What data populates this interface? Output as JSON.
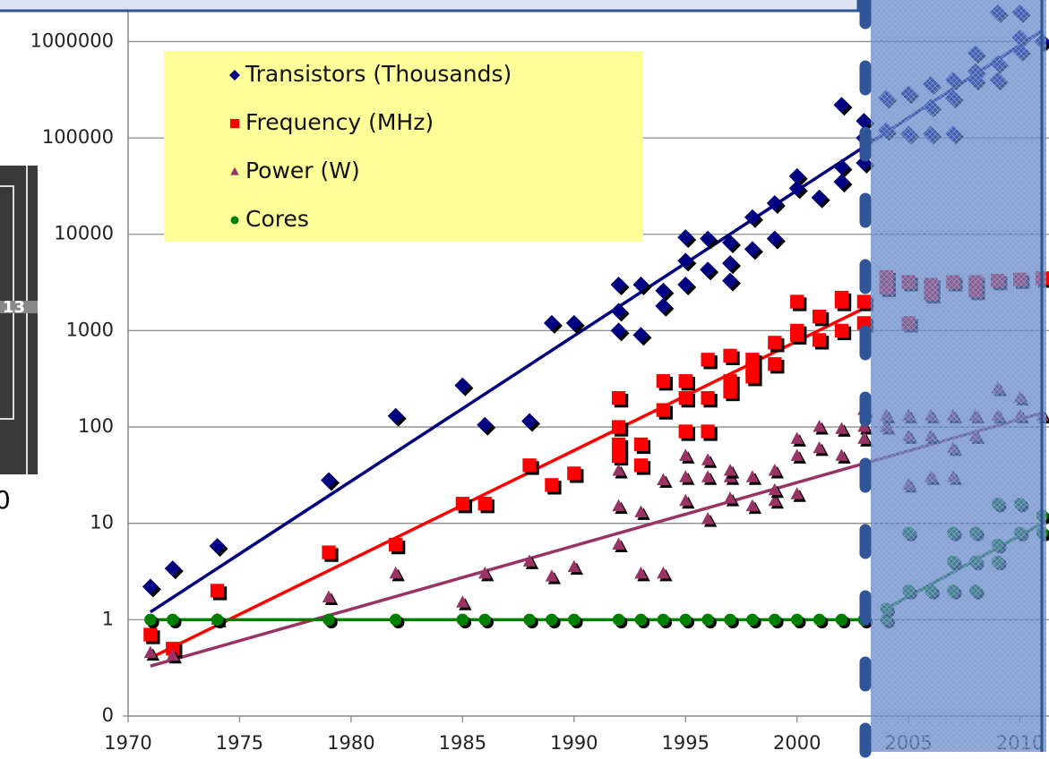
{
  "chart_data": {
    "type": "scatter",
    "log_y": true,
    "grid": true,
    "legend": "upper left",
    "xlim": [
      1970,
      2011.3
    ],
    "ylim": [
      0.1,
      2700000
    ],
    "xticks": [
      1970,
      1975,
      1980,
      1985,
      1990,
      1995,
      2000,
      2005,
      2010
    ],
    "yticks": [
      {
        "value": 0.1,
        "label": "0"
      },
      1,
      10,
      100,
      1000,
      10000,
      100000,
      1000000
    ],
    "annotations": [
      "13",
      "0"
    ],
    "series": [
      {
        "name": "Transistors (Thousands)",
        "color": "#000080",
        "marker": "diamond",
        "x": [
          1971,
          1972,
          1974,
          1979,
          1982,
          1985,
          1986,
          1988,
          1989,
          1990,
          1992,
          1992,
          1992,
          1993,
          1993,
          1994,
          1994,
          1995,
          1995,
          1995,
          1996,
          1996,
          1997,
          1997,
          1997,
          1998,
          1998,
          1999,
          1999,
          2000,
          2000,
          2001,
          2002,
          2002,
          2002,
          2003,
          2003,
          2003,
          2004,
          2004,
          2005,
          2005,
          2006,
          2006,
          2006,
          2007,
          2007,
          2007,
          2008,
          2008,
          2008,
          2009,
          2009,
          2009,
          2010,
          2010,
          2010,
          2011
        ],
        "values": [
          2.2,
          3.4,
          5.8,
          28,
          130,
          270,
          105,
          115,
          1200,
          1200,
          3000,
          1600,
          1000,
          3000,
          900,
          2600,
          1800,
          9300,
          5300,
          3000,
          9000,
          4300,
          8200,
          5000,
          3300,
          15000,
          7000,
          21000,
          9000,
          40000,
          30000,
          24000,
          220000,
          50000,
          35000,
          150000,
          100000,
          55000,
          260000,
          120000,
          290000,
          110000,
          360000,
          210000,
          110000,
          400000,
          260000,
          110000,
          760000,
          490000,
          400000,
          2000000,
          600000,
          400000,
          2000000,
          1100000,
          800000,
          1000000
        ],
        "trends": [
          {
            "x": [
              1971,
              2011
            ],
            "values": [
              1.2,
              1300000
            ]
          }
        ]
      },
      {
        "name": "Frequency (MHz)",
        "color": "#ff0000",
        "marker": "square",
        "x": [
          1971,
          1972,
          1974,
          1979,
          1982,
          1985,
          1986,
          1988,
          1989,
          1990,
          1992,
          1992,
          1992,
          1992,
          1993,
          1993,
          1994,
          1994,
          1995,
          1995,
          1995,
          1996,
          1996,
          1996,
          1997,
          1997,
          1997,
          1998,
          1998,
          1998,
          1999,
          1999,
          2000,
          2000,
          2000,
          2001,
          2001,
          2002,
          2002,
          2002,
          2003,
          2003,
          2004,
          2004,
          2005,
          2005,
          2006,
          2006,
          2007,
          2008,
          2008,
          2009,
          2010,
          2011
        ],
        "values": [
          0.7,
          0.5,
          2,
          5,
          6,
          16,
          16,
          40,
          25,
          33,
          200,
          100,
          66,
          50,
          66,
          40,
          300,
          150,
          300,
          200,
          90,
          500,
          200,
          90,
          550,
          300,
          233,
          500,
          400,
          333,
          750,
          450,
          2000,
          1000,
          900,
          1400,
          800,
          2200,
          2000,
          1000,
          2000,
          1200,
          3600,
          2800,
          3200,
          1200,
          3000,
          2400,
          3200,
          3200,
          2600,
          3300,
          3400,
          3500
        ],
        "trends": [
          {
            "x": [
              1971,
              2003
            ],
            "values": [
              0.4,
              1700
            ]
          }
        ]
      },
      {
        "name": "Power (W)",
        "color": "#993366",
        "marker": "triangle",
        "x": [
          1971,
          1972,
          1974,
          1979,
          1982,
          1985,
          1986,
          1988,
          1989,
          1990,
          1992,
          1992,
          1992,
          1993,
          1993,
          1994,
          1994,
          1995,
          1995,
          1995,
          1996,
          1996,
          1996,
          1997,
          1997,
          1997,
          1998,
          1998,
          1999,
          1999,
          1999,
          2000,
          2000,
          2000,
          2001,
          2001,
          2002,
          2002,
          2003,
          2003,
          2003,
          2004,
          2004,
          2005,
          2005,
          2005,
          2006,
          2006,
          2006,
          2007,
          2007,
          2007,
          2008,
          2008,
          2009,
          2009,
          2010,
          2010,
          2011
        ],
        "values": [
          0.45,
          0.42,
          1,
          1.7,
          3,
          1.5,
          3,
          4,
          2.8,
          3.5,
          6,
          15,
          35,
          13,
          3,
          3,
          28,
          17,
          30,
          50,
          11,
          30,
          45,
          18,
          30,
          35,
          15,
          30,
          17,
          22,
          35,
          20,
          50,
          75,
          100,
          60,
          50,
          95,
          150,
          100,
          75,
          100,
          130,
          25,
          80,
          130,
          30,
          80,
          130,
          30,
          60,
          130,
          130,
          80,
          250,
          130,
          200,
          130,
          130
        ],
        "trends": [
          {
            "x": [
              1971,
              2011
            ],
            "values": [
              0.33,
              140
            ]
          }
        ]
      },
      {
        "name": "Cores",
        "color": "#008000",
        "marker": "circle",
        "x": [
          1971,
          1972,
          1974,
          1979,
          1982,
          1985,
          1986,
          1988,
          1989,
          1990,
          1992,
          1993,
          1994,
          1995,
          1996,
          1997,
          1998,
          1999,
          2000,
          2001,
          2002,
          2003,
          2004,
          2004,
          2005,
          2005,
          2006,
          2007,
          2007,
          2007,
          2008,
          2008,
          2008,
          2009,
          2009,
          2009,
          2010,
          2010,
          2011,
          2011
        ],
        "values": [
          1,
          1,
          1,
          1,
          1,
          1,
          1,
          1,
          1,
          1,
          1,
          1,
          1,
          1,
          1,
          1,
          1,
          1,
          1,
          1,
          1,
          1,
          1,
          1.3,
          2,
          8,
          2,
          2,
          4,
          8,
          2,
          4,
          8,
          16,
          6,
          4,
          8,
          16,
          8,
          12
        ],
        "trends": [
          {
            "x": [
              1971,
              2003
            ],
            "values": [
              1,
              1
            ]
          },
          {
            "x": [
              2004,
              2011
            ],
            "values": [
              1.3,
              10
            ]
          }
        ]
      }
    ]
  }
}
